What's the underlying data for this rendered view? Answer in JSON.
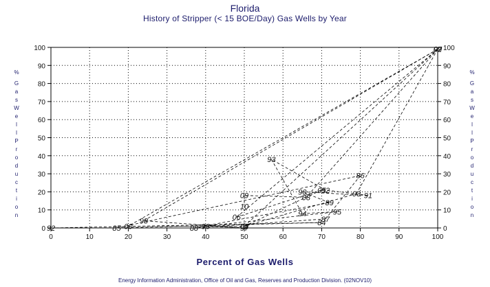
{
  "chart_data": {
    "type": "line",
    "title": "Florida",
    "subtitle": "History of Stripper (< 15 BOE/Day) Gas Wells by Year",
    "xlabel": "Percent of Gas Wells",
    "ylabel": "% Gas Well Production",
    "xlim": [
      0,
      100
    ],
    "ylim": [
      0,
      100
    ],
    "xticks": [
      0,
      10,
      20,
      30,
      40,
      50,
      60,
      70,
      80,
      90,
      100
    ],
    "yticks": [
      0,
      10,
      20,
      30,
      40,
      50,
      60,
      70,
      80,
      90,
      100
    ],
    "grid": true,
    "line_style": "dashed",
    "points": [
      {
        "label": "92",
        "x": 0,
        "y": 0
      },
      {
        "label": "84",
        "x": 70,
        "y": 3
      },
      {
        "label": "85",
        "x": 17,
        "y": 0
      },
      {
        "label": "86",
        "x": 80,
        "y": 29
      },
      {
        "label": "87",
        "x": 71,
        "y": 5
      },
      {
        "label": "88",
        "x": 37,
        "y": 0
      },
      {
        "label": "89",
        "x": 72,
        "y": 14
      },
      {
        "label": "90",
        "x": 65,
        "y": 20
      },
      {
        "label": "91",
        "x": 82,
        "y": 18
      },
      {
        "label": "92",
        "x": 71,
        "y": 21
      },
      {
        "label": "93",
        "x": 57,
        "y": 38
      },
      {
        "label": "94",
        "x": 65,
        "y": 8
      },
      {
        "label": "95",
        "x": 74,
        "y": 9
      },
      {
        "label": "96",
        "x": 40,
        "y": 1
      },
      {
        "label": "97",
        "x": 50,
        "y": 0
      },
      {
        "label": "98",
        "x": 24,
        "y": 4
      },
      {
        "label": "99",
        "x": 100,
        "y": 99
      },
      {
        "label": "00",
        "x": 20,
        "y": 1
      },
      {
        "label": "01",
        "x": 50,
        "y": 1
      },
      {
        "label": "02",
        "x": 100,
        "y": 99
      },
      {
        "label": "03",
        "x": 79,
        "y": 19
      },
      {
        "label": "04",
        "x": 50,
        "y": 1
      },
      {
        "label": "05",
        "x": 70,
        "y": 21
      },
      {
        "label": "06",
        "x": 48,
        "y": 6
      },
      {
        "label": "07",
        "x": 100,
        "y": 99
      },
      {
        "label": "08",
        "x": 66,
        "y": 17
      },
      {
        "label": "09",
        "x": 50,
        "y": 18
      },
      {
        "label": "10",
        "x": 50,
        "y": 12
      }
    ],
    "visible_labels": [
      "92",
      "85",
      "00",
      "98",
      "88",
      "96",
      "97",
      "01",
      "04",
      "99",
      "02",
      "07",
      "93",
      "90",
      "94",
      "84",
      "87",
      "89",
      "95",
      "86",
      "03",
      "91",
      "92",
      "05",
      "08",
      "09",
      "10",
      "06"
    ]
  },
  "footer": "Energy Information Administration, Office of Oil and Gas, Reserves and Production Division. (02NOV10)"
}
